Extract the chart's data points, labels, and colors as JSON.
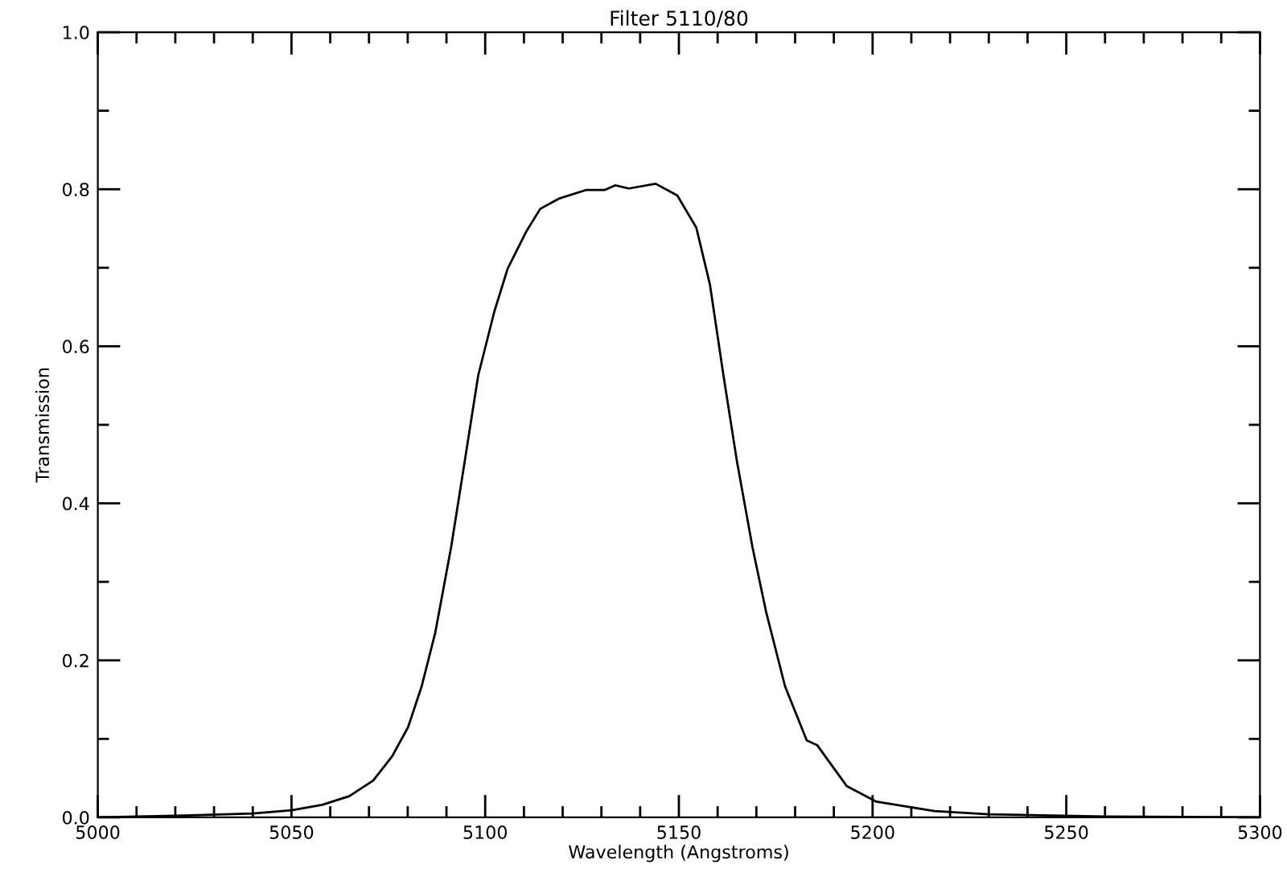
{
  "chart_data": {
    "type": "line",
    "title": "Filter 5110/80",
    "xlabel": "Wavelength (Angstroms)",
    "ylabel": "Transmission",
    "series": [
      {
        "color": "#000000",
        "x": [
          5000,
          5020,
          5040,
          5050,
          5057.9,
          5064.9,
          5071.1,
          5076,
          5080.1,
          5083.6,
          5087.1,
          5091.2,
          5094.7,
          5098.2,
          5102.4,
          5105.8,
          5110.7,
          5114.2,
          5119,
          5126,
          5130.8,
          5133.6,
          5137.1,
          5144,
          5149.6,
          5154.5,
          5158,
          5161.5,
          5165,
          5169,
          5172.5,
          5177.4,
          5183,
          5185.7,
          5193.3,
          5201,
          5216,
          5230,
          5260,
          5300
        ],
        "values": [
          0.0,
          0.002,
          0.005,
          0.009,
          0.016,
          0.027,
          0.047,
          0.078,
          0.115,
          0.167,
          0.235,
          0.344,
          0.453,
          0.563,
          0.645,
          0.699,
          0.747,
          0.775,
          0.788,
          0.799,
          0.799,
          0.805,
          0.801,
          0.807,
          0.792,
          0.751,
          0.679,
          0.563,
          0.453,
          0.344,
          0.262,
          0.167,
          0.098,
          0.092,
          0.04,
          0.02,
          0.008,
          0.004,
          0.001,
          0.0
        ]
      }
    ],
    "xlim": [
      5000,
      5300
    ],
    "xticks": [
      5000,
      {
        "value": 5010,
        "label": null
      },
      {
        "value": 5020,
        "label": null
      },
      {
        "value": 5030,
        "label": null
      },
      {
        "value": 5040,
        "label": null
      },
      5050,
      {
        "value": 5060,
        "label": null
      },
      {
        "value": 5070,
        "label": null
      },
      {
        "value": 5080,
        "label": null
      },
      {
        "value": 5090,
        "label": null
      },
      5100,
      {
        "value": 5110,
        "label": null
      },
      {
        "value": 5120,
        "label": null
      },
      {
        "value": 5130,
        "label": null
      },
      {
        "value": 5140,
        "label": null
      },
      5150,
      {
        "value": 5160,
        "label": null
      },
      {
        "value": 5170,
        "label": null
      },
      {
        "value": 5180,
        "label": null
      },
      {
        "value": 5190,
        "label": null
      },
      5200,
      {
        "value": 5210,
        "label": null
      },
      {
        "value": 5220,
        "label": null
      },
      {
        "value": 5230,
        "label": null
      },
      {
        "value": 5240,
        "label": null
      },
      5250,
      {
        "value": 5260,
        "label": null
      },
      {
        "value": 5270,
        "label": null
      },
      {
        "value": 5280,
        "label": null
      },
      {
        "value": 5290,
        "label": null
      },
      5300
    ],
    "ylim": [
      0,
      1
    ],
    "yticks": [
      {
        "value": 0,
        "label": "0.0"
      },
      {
        "value": 0.1,
        "label": null
      },
      {
        "value": 0.2,
        "label": "0.2"
      },
      {
        "value": 0.3,
        "label": null
      },
      {
        "value": 0.4,
        "label": "0.4"
      },
      {
        "value": 0.5,
        "label": null
      },
      {
        "value": 0.6,
        "label": "0.6"
      },
      {
        "value": 0.7,
        "label": null
      },
      {
        "value": 0.8,
        "label": "0.8"
      },
      {
        "value": 0.9,
        "label": null
      },
      {
        "value": 1,
        "label": "1.0"
      }
    ],
    "grid": false,
    "legend": false,
    "marker": "none",
    "line_style": "solid"
  }
}
